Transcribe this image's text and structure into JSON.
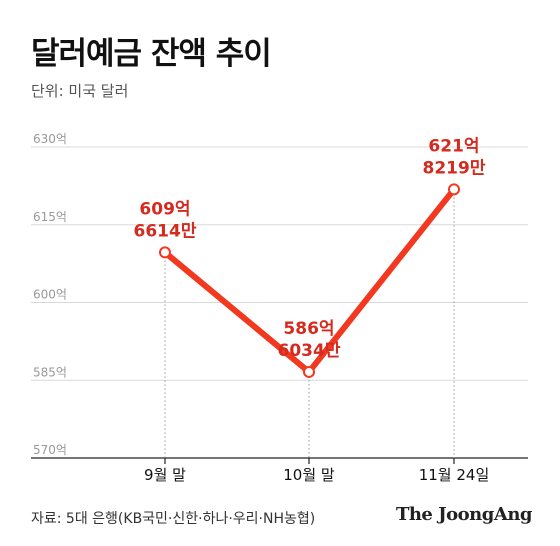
{
  "header": {
    "title": "달러예금 잔액 추이",
    "unit": "단위: 미국 달러"
  },
  "footer": {
    "source": "자료: 5대 은행(KB국민·신한·하나·우리·NH농협)",
    "brand": "The JoongAng"
  },
  "colors": {
    "line": "#f2381f",
    "label": "#d42a1f",
    "grid": "#d9d9d9",
    "axis": "#222222"
  },
  "chart_data": {
    "type": "line",
    "title": "달러예금 잔액 추이",
    "ylabel": "",
    "xlabel": "",
    "ylim": [
      570,
      630
    ],
    "grid": true,
    "yticks": [
      570,
      585,
      600,
      615,
      630
    ],
    "ytick_labels": [
      "570억",
      "585억",
      "600억",
      "615억",
      "630억"
    ],
    "categories": [
      "9월 말",
      "10월 말",
      "11월 24일"
    ],
    "series": [
      {
        "values": [
          609.6614,
          586.6034,
          621.8219
        ],
        "data_labels": [
          [
            "609억",
            "6614만"
          ],
          [
            "586억",
            "6034만"
          ],
          [
            "621억",
            "8219만"
          ]
        ]
      }
    ]
  }
}
